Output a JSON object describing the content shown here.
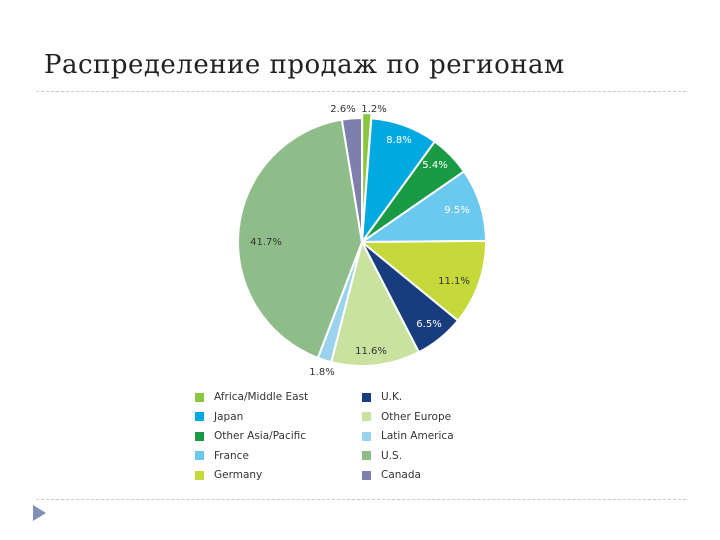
{
  "slide": {
    "title": "Распределение продаж по регионам"
  },
  "chart_data": {
    "type": "pie",
    "title": "",
    "start": "12 o'clock, clockwise",
    "slices": [
      {
        "label": "Africa/Middle East",
        "value": 1.2,
        "display": "1.2%",
        "color": "#8cc63f"
      },
      {
        "label": "Japan",
        "value": 8.8,
        "display": "8.8%",
        "color": "#00a9e0"
      },
      {
        "label": "Other Asia/Pacific",
        "value": 5.4,
        "display": "5.4%",
        "color": "#1b9a45"
      },
      {
        "label": "France",
        "value": 9.5,
        "display": "9.5%",
        "color": "#6bc8ee"
      },
      {
        "label": "Germany",
        "value": 11.1,
        "display": "11.1%",
        "color": "#c5d93b"
      },
      {
        "label": "U.K.",
        "value": 6.5,
        "display": "6.5%",
        "color": "#183d7e"
      },
      {
        "label": "Other Europe",
        "value": 11.6,
        "display": "11.6%",
        "color": "#c9e2a0"
      },
      {
        "label": "Latin America",
        "value": 1.8,
        "display": "1.8%",
        "color": "#9bd3ee"
      },
      {
        "label": "U.S.",
        "value": 41.7,
        "display": "41.7%",
        "color": "#8fbd8a"
      },
      {
        "label": "Canada",
        "value": 2.6,
        "display": "2.6%",
        "color": "#7d7fad"
      }
    ],
    "legend_order": [
      "Africa/Middle East",
      "Japan",
      "Other Asia/Pacific",
      "France",
      "Germany",
      "U.K.",
      "Other Europe",
      "Latin America",
      "U.S.",
      "Canada"
    ],
    "legend_position": "bottom, two columns"
  }
}
